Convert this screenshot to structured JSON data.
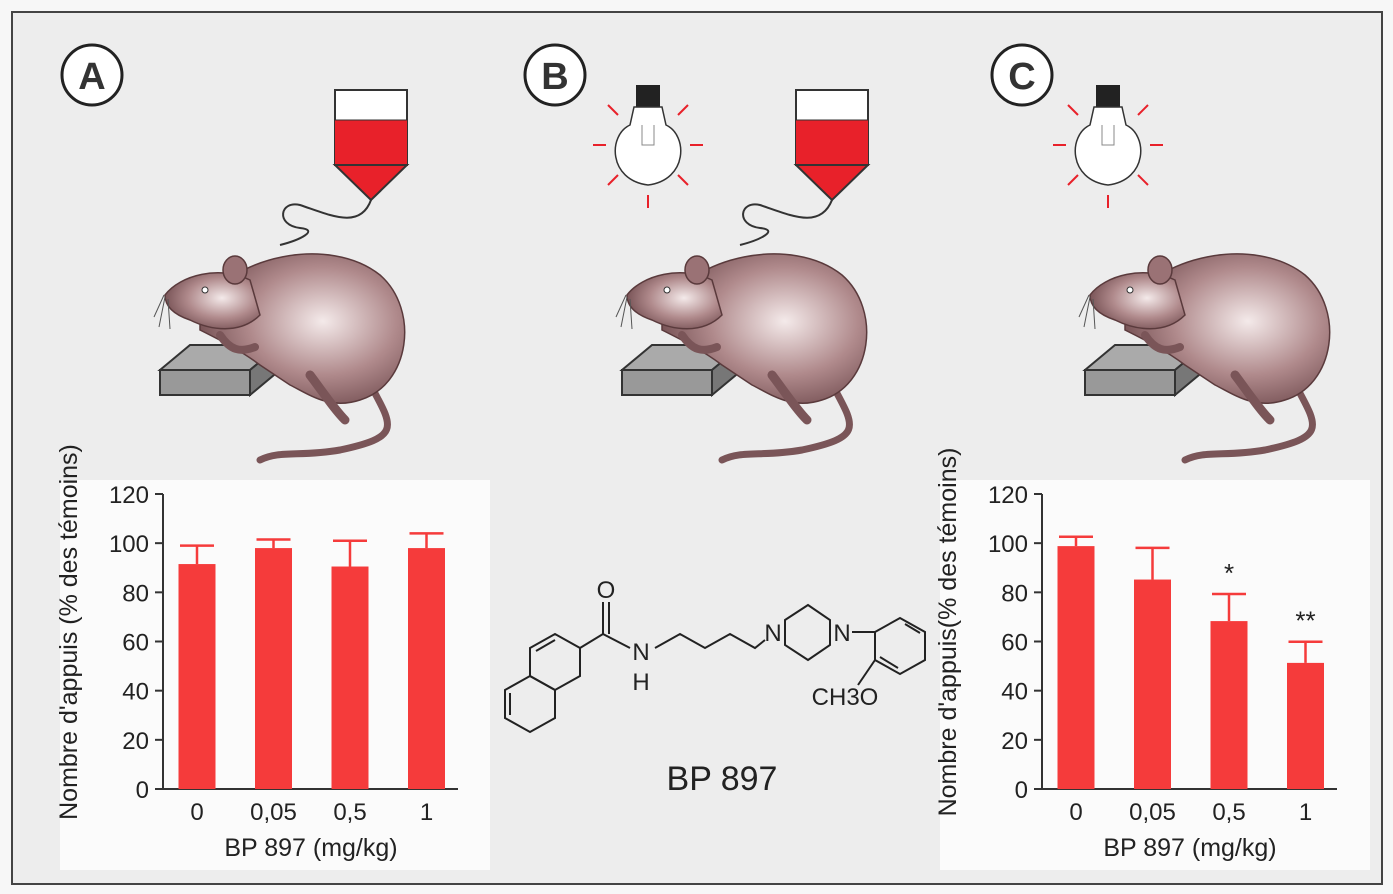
{
  "panels": [
    {
      "label": "A"
    },
    {
      "label": "B"
    },
    {
      "label": "C"
    }
  ],
  "molecule": {
    "name": "BP 897",
    "atoms": {
      "o": "O",
      "n1": "N",
      "h": "H",
      "n2": "N",
      "n3": "N",
      "methoxy": "CH3O"
    }
  },
  "colors": {
    "bar": "#f53b3b",
    "liquid": "#e8212a",
    "ray": "#e8212a",
    "axis": "#333333"
  },
  "chart_data": [
    {
      "type": "bar",
      "panel": "A",
      "title": "",
      "categories": [
        "0",
        "0,05",
        "0,5",
        "1"
      ],
      "values": [
        91.5,
        98,
        90.5,
        98
      ],
      "error_upper": [
        99,
        101.5,
        101,
        104
      ],
      "annotations": [
        "",
        "",
        "",
        ""
      ],
      "xlabel": "BP 897 (mg/kg)",
      "ylabel": "Nombre d'appuis (% des témoins)",
      "ylim": [
        0,
        120
      ],
      "yticks": [
        "0",
        "20",
        "40",
        "60",
        "80",
        "100",
        "120"
      ],
      "grid": false
    },
    {
      "type": "bar",
      "panel": "C",
      "title": "",
      "categories": [
        "0",
        "0,05",
        "0,5",
        "1"
      ],
      "values": [
        98.8,
        85.2,
        68.3,
        51.3
      ],
      "error_upper": [
        102.6,
        98.1,
        79.3,
        59.9
      ],
      "annotations": [
        "",
        "",
        "*",
        "**"
      ],
      "xlabel": "BP 897 (mg/kg)",
      "ylabel": "Nombre d'appuis(% des témoins)",
      "ylim": [
        0,
        120
      ],
      "yticks": [
        "0",
        "20",
        "40",
        "60",
        "80",
        "100",
        "120"
      ],
      "grid": false
    }
  ]
}
